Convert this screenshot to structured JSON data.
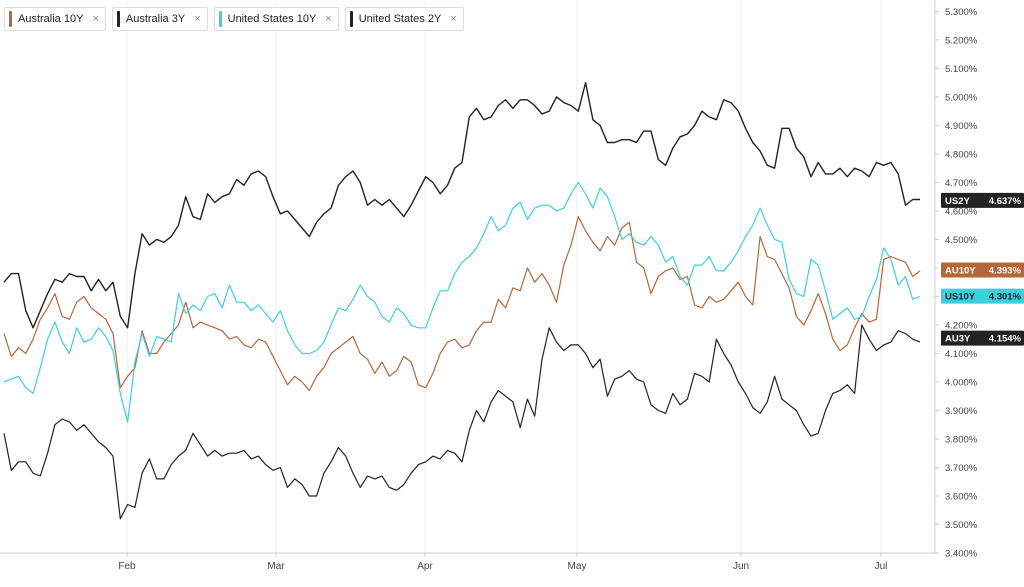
{
  "legend": [
    {
      "label": "Australia 10Y",
      "color": "#b5673a",
      "close": "×"
    },
    {
      "label": "Australia 3Y",
      "color": "#222222",
      "close": "×"
    },
    {
      "label": "United States 10Y",
      "color": "#3fcfdc",
      "close": "×"
    },
    {
      "label": "United States 2Y",
      "color": "#222222",
      "close": "×"
    }
  ],
  "chart_data": {
    "type": "line",
    "y_ticks": [
      "3.400%",
      "3.500%",
      "3.600%",
      "3.700%",
      "3.800%",
      "3.900%",
      "4.000%",
      "4.100%",
      "4.200%",
      "4.300%",
      "4.400%",
      "4.500%",
      "4.600%",
      "4.700%",
      "4.800%",
      "4.900%",
      "5.000%",
      "5.100%",
      "5.200%",
      "5.300%"
    ],
    "x_ticks": [
      "Feb",
      "Mar",
      "Apr",
      "May",
      "Jun",
      "Jul"
    ],
    "ylim": [
      3.4,
      5.34
    ],
    "grid": true,
    "legend_position": "top-left",
    "series": [
      {
        "name": "Australia 10Y",
        "key": "au10",
        "color": "#b5673a",
        "last_label": "AU10Y",
        "last_value": "4.393%",
        "values": [
          4.17,
          4.09,
          4.12,
          4.1,
          4.15,
          4.22,
          4.26,
          4.31,
          4.23,
          4.22,
          4.28,
          4.3,
          4.26,
          4.24,
          4.22,
          4.17,
          3.98,
          4.02,
          4.05,
          4.18,
          4.1,
          4.1,
          4.14,
          4.17,
          4.2,
          4.28,
          4.19,
          4.21,
          4.2,
          4.19,
          4.18,
          4.15,
          4.16,
          4.13,
          4.12,
          4.15,
          4.14,
          4.09,
          4.04,
          3.99,
          4.02,
          4.0,
          3.97,
          4.02,
          4.05,
          4.1,
          4.12,
          4.14,
          4.16,
          4.1,
          4.08,
          4.03,
          4.07,
          4.02,
          4.04,
          4.09,
          4.07,
          3.99,
          3.98,
          4.03,
          4.1,
          4.14,
          4.15,
          4.12,
          4.13,
          4.18,
          4.21,
          4.21,
          4.29,
          4.26,
          4.33,
          4.32,
          4.4,
          4.35,
          4.38,
          4.34,
          4.28,
          4.41,
          4.48,
          4.58,
          4.53,
          4.49,
          4.46,
          4.51,
          4.48,
          4.54,
          4.56,
          4.42,
          4.4,
          4.31,
          4.37,
          4.39,
          4.4,
          4.36,
          4.37,
          4.27,
          4.26,
          4.3,
          4.28,
          4.29,
          4.32,
          4.35,
          4.3,
          4.27,
          4.51,
          4.44,
          4.43,
          4.38,
          4.33,
          4.23,
          4.2,
          4.25,
          4.31,
          4.24,
          4.15,
          4.11,
          4.13,
          4.19,
          4.24,
          4.21,
          4.22,
          4.43,
          4.44,
          4.43,
          4.42,
          4.37,
          4.39
        ],
        "line_width": 1.2
      },
      {
        "name": "Australia 3Y",
        "key": "au3",
        "color": "#222222",
        "last_label": "AU3Y",
        "last_value": "4.154%",
        "values": [
          3.82,
          3.69,
          3.72,
          3.72,
          3.68,
          3.67,
          3.75,
          3.85,
          3.87,
          3.86,
          3.83,
          3.85,
          3.82,
          3.79,
          3.77,
          3.74,
          3.52,
          3.57,
          3.56,
          3.68,
          3.73,
          3.66,
          3.66,
          3.71,
          3.74,
          3.76,
          3.82,
          3.78,
          3.74,
          3.76,
          3.74,
          3.75,
          3.75,
          3.76,
          3.73,
          3.74,
          3.71,
          3.69,
          3.7,
          3.63,
          3.66,
          3.64,
          3.6,
          3.6,
          3.68,
          3.72,
          3.77,
          3.74,
          3.68,
          3.63,
          3.67,
          3.66,
          3.67,
          3.63,
          3.62,
          3.64,
          3.68,
          3.71,
          3.72,
          3.74,
          3.73,
          3.76,
          3.75,
          3.72,
          3.83,
          3.9,
          3.86,
          3.93,
          3.97,
          3.95,
          3.93,
          3.84,
          3.94,
          3.88,
          4.08,
          4.19,
          4.14,
          4.11,
          4.13,
          4.13,
          4.1,
          4.05,
          4.08,
          3.95,
          4.01,
          4.02,
          4.04,
          4.01,
          4.0,
          3.92,
          3.9,
          3.89,
          3.96,
          3.92,
          3.94,
          4.03,
          4.02,
          4.0,
          4.15,
          4.1,
          4.06,
          4.0,
          3.96,
          3.91,
          3.89,
          3.93,
          4.02,
          3.94,
          3.92,
          3.9,
          3.85,
          3.81,
          3.82,
          3.9,
          3.96,
          3.97,
          3.99,
          3.96,
          4.2,
          4.15,
          4.11,
          4.13,
          4.14,
          4.18,
          4.17,
          4.15,
          4.14
        ],
        "line_width": 1.2
      },
      {
        "name": "United States 10Y",
        "key": "us10",
        "color": "#3fcfdc",
        "last_label": "US10Y",
        "last_value": "4.301%",
        "values": [
          4.0,
          4.01,
          4.02,
          3.98,
          3.96,
          4.05,
          4.15,
          4.21,
          4.14,
          4.1,
          4.19,
          4.14,
          4.15,
          4.19,
          4.16,
          4.11,
          3.96,
          3.86,
          4.07,
          4.17,
          4.09,
          4.16,
          4.15,
          4.14,
          4.31,
          4.24,
          4.27,
          4.25,
          4.3,
          4.31,
          4.26,
          4.34,
          4.28,
          4.28,
          4.25,
          4.27,
          4.24,
          4.21,
          4.25,
          4.18,
          4.13,
          4.1,
          4.1,
          4.11,
          4.14,
          4.2,
          4.26,
          4.25,
          4.29,
          4.34,
          4.3,
          4.28,
          4.23,
          4.21,
          4.26,
          4.24,
          4.2,
          4.19,
          4.19,
          4.26,
          4.32,
          4.32,
          4.38,
          4.42,
          4.44,
          4.47,
          4.52,
          4.58,
          4.53,
          4.55,
          4.61,
          4.63,
          4.57,
          4.61,
          4.62,
          4.62,
          4.6,
          4.61,
          4.66,
          4.7,
          4.66,
          4.61,
          4.68,
          4.65,
          4.58,
          4.5,
          4.52,
          4.49,
          4.48,
          4.51,
          4.48,
          4.42,
          4.44,
          4.37,
          4.34,
          4.41,
          4.41,
          4.44,
          4.39,
          4.39,
          4.42,
          4.46,
          4.51,
          4.55,
          4.61,
          4.55,
          4.5,
          4.49,
          4.36,
          4.31,
          4.3,
          4.43,
          4.41,
          4.32,
          4.22,
          4.24,
          4.26,
          4.22,
          4.23,
          4.3,
          4.36,
          4.47,
          4.43,
          4.34,
          4.37,
          4.29,
          4.3
        ],
        "line_width": 1.2
      },
      {
        "name": "United States 2Y",
        "key": "us2",
        "color": "#222222",
        "last_label": "US2Y",
        "last_value": "4.637%",
        "values": [
          4.35,
          4.38,
          4.38,
          4.25,
          4.19,
          4.25,
          4.31,
          4.36,
          4.35,
          4.38,
          4.37,
          4.37,
          4.32,
          4.36,
          4.32,
          4.35,
          4.23,
          4.19,
          4.38,
          4.52,
          4.48,
          4.5,
          4.49,
          4.51,
          4.55,
          4.65,
          4.58,
          4.57,
          4.66,
          4.63,
          4.65,
          4.66,
          4.71,
          4.69,
          4.73,
          4.74,
          4.72,
          4.65,
          4.59,
          4.6,
          4.57,
          4.54,
          4.51,
          4.56,
          4.59,
          4.61,
          4.69,
          4.72,
          4.74,
          4.7,
          4.62,
          4.64,
          4.62,
          4.64,
          4.61,
          4.58,
          4.62,
          4.67,
          4.72,
          4.7,
          4.66,
          4.69,
          4.75,
          4.77,
          4.93,
          4.96,
          4.92,
          4.93,
          4.97,
          4.99,
          4.96,
          4.99,
          4.99,
          4.97,
          4.94,
          4.95,
          5.0,
          4.98,
          4.97,
          4.95,
          5.05,
          4.92,
          4.9,
          4.84,
          4.84,
          4.85,
          4.85,
          4.84,
          4.88,
          4.88,
          4.78,
          4.76,
          4.82,
          4.86,
          4.87,
          4.9,
          4.95,
          4.93,
          4.92,
          4.99,
          4.98,
          4.95,
          4.89,
          4.84,
          4.81,
          4.76,
          4.75,
          4.89,
          4.89,
          4.82,
          4.79,
          4.72,
          4.77,
          4.73,
          4.73,
          4.75,
          4.72,
          4.75,
          4.74,
          4.72,
          4.77,
          4.76,
          4.77,
          4.73,
          4.62,
          4.64,
          4.64
        ],
        "line_width": 1.4
      }
    ]
  }
}
